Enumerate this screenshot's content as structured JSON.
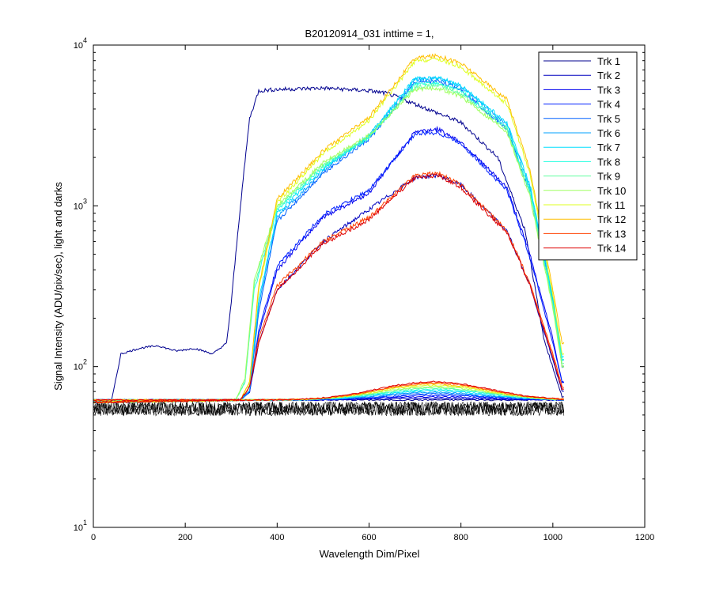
{
  "chart_data": {
    "type": "line",
    "title": "B20120914_031 inttime = 1,",
    "xlabel": "Wavelength Dim/Pixel",
    "ylabel": "Signal Intensity (ADU/pix/sec), light and darks",
    "xlim": [
      0,
      1200
    ],
    "ylim": [
      10,
      10000
    ],
    "y_scale": "log",
    "x_ticks": [
      0,
      200,
      400,
      600,
      800,
      1000,
      1200
    ],
    "x_tick_labels": [
      "0",
      "200",
      "400",
      "600",
      "800",
      "1000",
      "1200"
    ],
    "y_ticks": [
      {
        "base": "10",
        "exp": "1",
        "value": 10
      },
      {
        "base": "10",
        "exp": "2",
        "value": 100
      },
      {
        "base": "10",
        "exp": "3",
        "value": 1000
      },
      {
        "base": "10",
        "exp": "4",
        "value": 10000
      }
    ],
    "grid": false,
    "legend_position": "top-right",
    "dark_level": 55,
    "series": [
      {
        "name": "Trk 1",
        "color": "#00008f",
        "x": [
          0,
          40,
          60,
          100,
          140,
          180,
          220,
          260,
          290,
          300,
          320,
          340,
          360,
          400,
          500,
          600,
          640,
          700,
          800,
          880,
          940,
          980,
          1020
        ],
        "y": [
          60,
          62,
          120,
          130,
          135,
          125,
          130,
          120,
          140,
          250,
          1000,
          3500,
          5200,
          5300,
          5400,
          5200,
          5000,
          4300,
          3300,
          2000,
          700,
          150,
          65
        ]
      },
      {
        "name": "Trk 2",
        "color": "#0000bf",
        "x": [
          0,
          320,
          340,
          360,
          400,
          500,
          600,
          700,
          750,
          800,
          900,
          950,
          1000,
          1020
        ],
        "y": [
          60,
          62,
          70,
          140,
          300,
          600,
          950,
          1500,
          1550,
          1350,
          700,
          320,
          110,
          70
        ]
      },
      {
        "name": "Trk 3",
        "color": "#0000ef",
        "x": [
          0,
          320,
          340,
          360,
          400,
          500,
          600,
          700,
          750,
          800,
          900,
          950,
          1000,
          1020
        ],
        "y": [
          60,
          62,
          70,
          160,
          400,
          850,
          1200,
          2900,
          3000,
          2500,
          1300,
          500,
          150,
          80
        ]
      },
      {
        "name": "Trk 4",
        "color": "#0020ff",
        "x": [
          0,
          320,
          340,
          360,
          400,
          500,
          600,
          700,
          750,
          800,
          900,
          950,
          1000,
          1020
        ],
        "y": [
          60,
          62,
          70,
          170,
          420,
          880,
          1250,
          2800,
          2850,
          2450,
          1250,
          480,
          140,
          80
        ]
      },
      {
        "name": "Trk 5",
        "color": "#0060ff",
        "x": [
          0,
          320,
          340,
          360,
          400,
          500,
          600,
          700,
          750,
          800,
          900,
          950,
          1000,
          1020
        ],
        "y": [
          60,
          62,
          70,
          220,
          800,
          1600,
          2600,
          5800,
          6000,
          5300,
          3000,
          1200,
          250,
          100
        ]
      },
      {
        "name": "Trk 6",
        "color": "#00a0ff",
        "x": [
          0,
          320,
          340,
          360,
          400,
          500,
          600,
          700,
          750,
          800,
          900,
          950,
          1000,
          1020
        ],
        "y": [
          60,
          62,
          70,
          240,
          850,
          1650,
          2700,
          6100,
          6200,
          5500,
          3200,
          1300,
          260,
          110
        ]
      },
      {
        "name": "Trk 7",
        "color": "#00dfff",
        "x": [
          0,
          320,
          340,
          360,
          400,
          500,
          600,
          700,
          750,
          800,
          900,
          950,
          1000,
          1020
        ],
        "y": [
          60,
          62,
          75,
          260,
          900,
          1700,
          2750,
          6200,
          6300,
          5600,
          3300,
          1350,
          270,
          115
        ]
      },
      {
        "name": "Trk 8",
        "color": "#20ffdf",
        "x": [
          0,
          310,
          330,
          350,
          400,
          500,
          600,
          700,
          750,
          800,
          900,
          950,
          1000,
          1020
        ],
        "y": [
          60,
          62,
          80,
          300,
          950,
          1750,
          2650,
          5700,
          5800,
          5200,
          3100,
          1250,
          250,
          110
        ]
      },
      {
        "name": "Trk 9",
        "color": "#60ff9f",
        "x": [
          0,
          310,
          330,
          350,
          400,
          500,
          600,
          700,
          750,
          800,
          900,
          950,
          1000,
          1020
        ],
        "y": [
          60,
          62,
          80,
          320,
          980,
          1800,
          2700,
          5500,
          5600,
          5000,
          3000,
          1200,
          240,
          105
        ]
      },
      {
        "name": "Trk 10",
        "color": "#9fff60",
        "x": [
          0,
          310,
          330,
          350,
          400,
          500,
          600,
          700,
          750,
          800,
          900,
          950,
          1000,
          1020
        ],
        "y": [
          60,
          62,
          85,
          340,
          1000,
          1850,
          2750,
          5300,
          5400,
          4800,
          2900,
          1150,
          230,
          100
        ]
      },
      {
        "name": "Trk 11",
        "color": "#dfff20",
        "x": [
          0,
          320,
          340,
          360,
          400,
          500,
          600,
          700,
          750,
          800,
          900,
          950,
          1000,
          1020
        ],
        "y": [
          60,
          62,
          80,
          300,
          1050,
          2100,
          3400,
          7900,
          8200,
          7300,
          4300,
          1600,
          280,
          120
        ]
      },
      {
        "name": "Trk 12",
        "color": "#ffbf00",
        "x": [
          0,
          320,
          340,
          360,
          400,
          500,
          600,
          700,
          750,
          800,
          900,
          950,
          1000,
          1020
        ],
        "y": [
          60,
          62,
          80,
          320,
          1100,
          2200,
          3550,
          8300,
          8600,
          7700,
          4600,
          1700,
          300,
          140
        ]
      },
      {
        "name": "Trk 13",
        "color": "#ff4000",
        "x": [
          0,
          320,
          340,
          360,
          400,
          500,
          600,
          700,
          750,
          800,
          900,
          950,
          1000,
          1020
        ],
        "y": [
          60,
          62,
          75,
          150,
          320,
          600,
          850,
          1550,
          1600,
          1350,
          700,
          330,
          120,
          75
        ]
      },
      {
        "name": "Trk 14",
        "color": "#df0000",
        "x": [
          0,
          320,
          340,
          360,
          400,
          500,
          600,
          700,
          750,
          800,
          900,
          950,
          1000,
          1020
        ],
        "y": [
          60,
          62,
          75,
          140,
          300,
          580,
          820,
          1500,
          1550,
          1300,
          680,
          320,
          115,
          72
        ]
      }
    ]
  }
}
